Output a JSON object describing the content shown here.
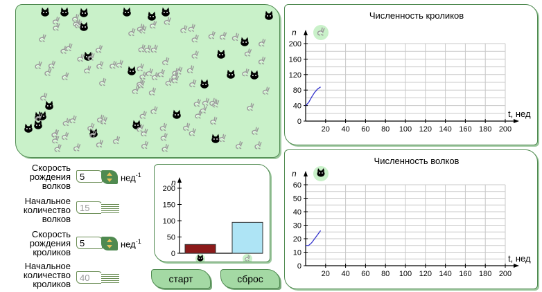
{
  "controls": {
    "wolf_birth_rate": {
      "label_lines": [
        "Скорость",
        "рождения",
        "волков"
      ],
      "value": "5",
      "unit": "нед",
      "unit_exp": "-1"
    },
    "wolf_initial": {
      "label_lines": [
        "Начальное",
        "количество",
        "волков"
      ],
      "value": "15"
    },
    "rabbit_birth_rate": {
      "label_lines": [
        "Скорость",
        "рождения",
        "кроликов"
      ],
      "value": "5",
      "unit": "нед",
      "unit_exp": "-1"
    },
    "rabbit_initial": {
      "label_lines": [
        "Начальное",
        "количество",
        "кроликов"
      ],
      "value": "40"
    }
  },
  "buttons": {
    "start": "старт",
    "reset": "сброс"
  },
  "bar_chart": {
    "ylabel": "n",
    "ylim": [
      0,
      200
    ],
    "ticks": [
      0,
      50,
      100,
      150,
      200
    ],
    "bars": [
      {
        "name": "wolves",
        "icon": "wolf-icon",
        "value": 27,
        "color": "#8b1a1a"
      },
      {
        "name": "rabbits",
        "icon": "rabbit-icon",
        "value": 95,
        "color": "#aee4f5"
      }
    ]
  },
  "chart_data": [
    {
      "type": "line",
      "title": "Численность кроликов",
      "ylabel": "n",
      "xlabel": "t, нед",
      "xlim": [
        0,
        200
      ],
      "ylim": [
        0,
        200
      ],
      "xticks": [
        20,
        40,
        60,
        80,
        100,
        120,
        140,
        160,
        180,
        200
      ],
      "yticks": [
        0,
        40,
        80,
        120,
        160,
        200
      ],
      "grid": true,
      "icon": "rabbit-icon",
      "series": [
        {
          "x": [
            0,
            3,
            6,
            9,
            12,
            15
          ],
          "y": [
            40,
            48,
            62,
            74,
            83,
            88
          ],
          "color": "#3333cc"
        }
      ]
    },
    {
      "type": "line",
      "title": "Численность волков",
      "ylabel": "n",
      "xlabel": "t, нед",
      "xlim": [
        0,
        200
      ],
      "ylim": [
        0,
        60
      ],
      "xticks": [
        20,
        40,
        60,
        80,
        100,
        120,
        140,
        160,
        180,
        200
      ],
      "yticks": [
        0,
        10,
        20,
        30,
        40,
        50,
        60
      ],
      "grid": true,
      "icon": "wolf-icon",
      "series": [
        {
          "x": [
            0,
            3,
            6,
            9,
            12,
            15
          ],
          "y": [
            15,
            15,
            17,
            20,
            23,
            26
          ],
          "color": "#3333cc"
        }
      ]
    }
  ],
  "field": {
    "wolf_count": 27,
    "rabbit_count": 95
  }
}
